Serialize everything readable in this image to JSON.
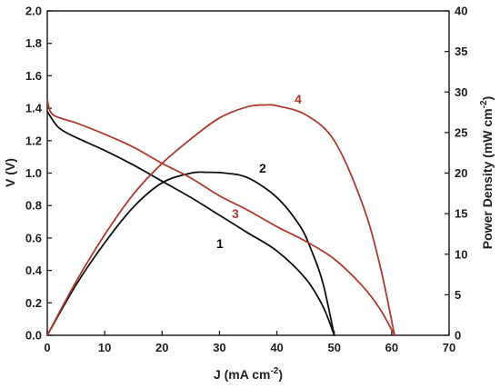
{
  "chart_data": {
    "type": "line",
    "xlabel": "J (mA cm",
    "xlabel_sup": "-2",
    "xlabel_end": ")",
    "ylabel_left": "V (V)",
    "ylabel_right": "Power Density (mW cm",
    "ylabel_right_sup": "-2",
    "ylabel_right_end": ")",
    "xlim": [
      0,
      70
    ],
    "ylim_left": [
      0,
      2.0
    ],
    "ylim_right": [
      0,
      40
    ],
    "x_ticks": [
      "0",
      "10",
      "20",
      "30",
      "40",
      "50",
      "60",
      "70"
    ],
    "y_left_ticks": [
      "0.0",
      "0.2",
      "0.4",
      "0.6",
      "0.8",
      "1.0",
      "1.2",
      "1.4",
      "1.6",
      "1.8",
      "2.0"
    ],
    "y_right_ticks": [
      "0",
      "5",
      "10",
      "15",
      "20",
      "25",
      "30",
      "35",
      "40"
    ],
    "grid": false,
    "series": [
      {
        "label": "1",
        "axis": "left",
        "color": "#111111",
        "x": [
          0,
          2,
          5,
          10,
          15,
          20,
          25,
          30,
          35,
          40,
          45,
          48,
          50
        ],
        "y": [
          1.38,
          1.28,
          1.22,
          1.14,
          1.05,
          0.95,
          0.85,
          0.74,
          0.63,
          0.52,
          0.35,
          0.18,
          0.0
        ]
      },
      {
        "label": "2",
        "axis": "right",
        "color": "#111111",
        "x": [
          0,
          5,
          10,
          15,
          20,
          25,
          28,
          31,
          35,
          40,
          44,
          46,
          48,
          50
        ],
        "y": [
          0,
          6.2,
          11.4,
          15.8,
          18.8,
          20.0,
          20.1,
          20.0,
          19.4,
          17.0,
          13.5,
          10.5,
          6.5,
          0
        ]
      },
      {
        "label": "3",
        "axis": "left",
        "color": "#b03a2e",
        "x": [
          0,
          1,
          5,
          10,
          15,
          20,
          25,
          30,
          35,
          40,
          45,
          50,
          55,
          58,
          60.5
        ],
        "y": [
          1.45,
          1.36,
          1.31,
          1.24,
          1.16,
          1.06,
          0.97,
          0.86,
          0.77,
          0.67,
          0.58,
          0.47,
          0.3,
          0.16,
          0.0
        ]
      },
      {
        "label": "4",
        "axis": "right",
        "color": "#b03a2e",
        "x": [
          0,
          5,
          10,
          15,
          20,
          25,
          30,
          35,
          38,
          40,
          45,
          50,
          55,
          58,
          60.5
        ],
        "y": [
          0,
          6.6,
          12.4,
          17.4,
          21.2,
          24.2,
          26.8,
          28.2,
          28.4,
          28.3,
          27.2,
          24.0,
          16.0,
          8.5,
          0
        ]
      }
    ]
  },
  "labels": {
    "curve1": "1",
    "curve2": "2",
    "curve3": "3",
    "curve4": "4"
  }
}
